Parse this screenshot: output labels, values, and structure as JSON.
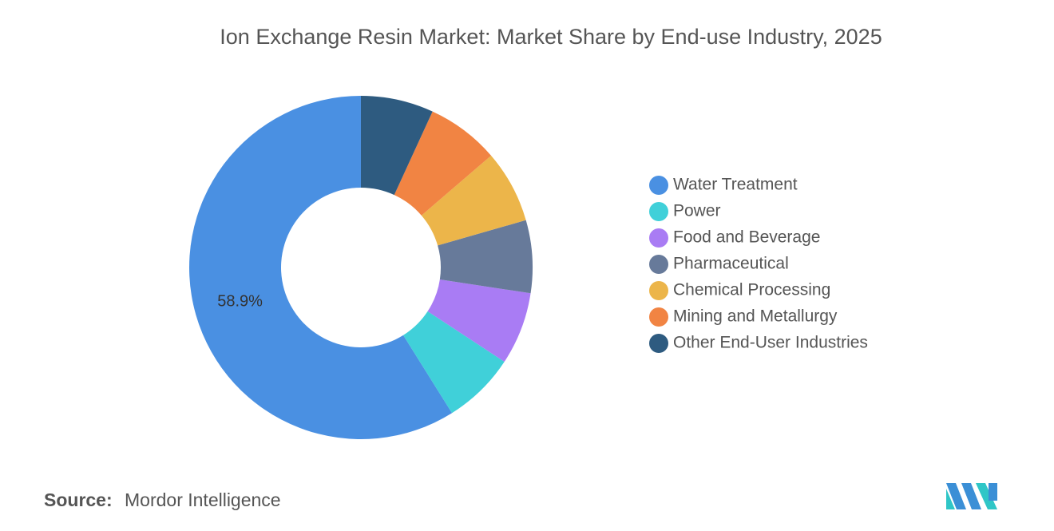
{
  "chart_data": {
    "type": "donut",
    "title": "Ion Exchange Resin Market: Market Share by End-use Industry, 2025",
    "categories": [
      "Water Treatment",
      "Power",
      "Food and Beverage",
      "Pharmaceutical",
      "Chemical Processing",
      "Mining and Metallurgy",
      "Other End-User Industries"
    ],
    "values": [
      58.9,
      6.85,
      6.85,
      6.85,
      6.85,
      6.85,
      6.85
    ],
    "value_labels": [
      "58.9%",
      null,
      null,
      null,
      null,
      null,
      null
    ],
    "colors": [
      "#4a90e2",
      "#40d0d9",
      "#a97cf4",
      "#677a9a",
      "#ecb54a",
      "#f18443",
      "#2e5b80"
    ],
    "legend": "right"
  },
  "source_label": "Source:",
  "source": "Mordor Intelligence"
}
